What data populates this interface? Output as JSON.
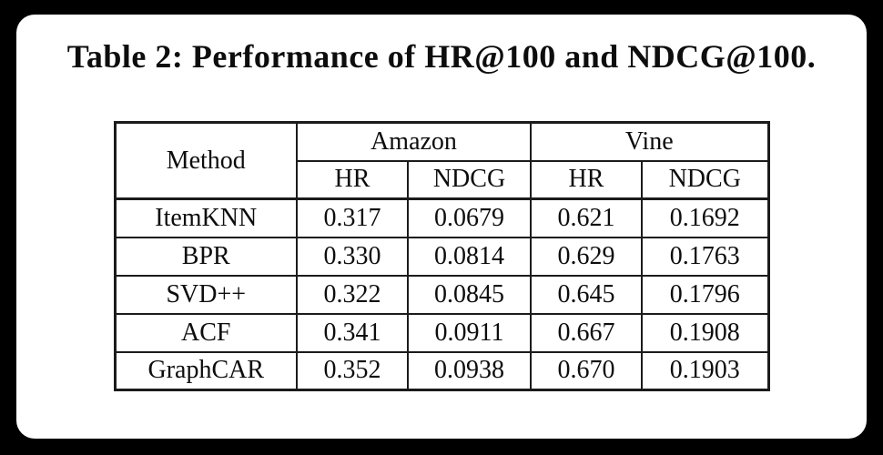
{
  "title": "Table 2: Performance of HR@100 and NDCG@100.",
  "colors": {
    "page_background": "#000000",
    "card_background": "#ffffff",
    "text": "#0d0d0d",
    "border": "#1b1b1b"
  },
  "table": {
    "method_header": "Method",
    "group_headers": [
      "Amazon",
      "Vine"
    ],
    "sub_headers": [
      "HR",
      "NDCG",
      "HR",
      "NDCG"
    ],
    "rows": [
      {
        "method": "ItemKNN",
        "values": [
          "0.317",
          "0.0679",
          "0.621",
          "0.1692"
        ],
        "bold": [
          false,
          false,
          false,
          false
        ]
      },
      {
        "method": "BPR",
        "values": [
          "0.330",
          "0.0814",
          "0.629",
          "0.1763"
        ],
        "bold": [
          false,
          false,
          false,
          false
        ]
      },
      {
        "method": "SVD++",
        "values": [
          "0.322",
          "0.0845",
          "0.645",
          "0.1796"
        ],
        "bold": [
          false,
          false,
          false,
          false
        ]
      },
      {
        "method": "ACF",
        "values": [
          "0.341",
          "0.0911",
          "0.667",
          "0.1908"
        ],
        "bold": [
          false,
          false,
          false,
          true
        ]
      },
      {
        "method": "GraphCAR",
        "values": [
          "0.352",
          "0.0938",
          "0.670",
          "0.1903"
        ],
        "bold": [
          true,
          true,
          true,
          false
        ]
      }
    ]
  }
}
